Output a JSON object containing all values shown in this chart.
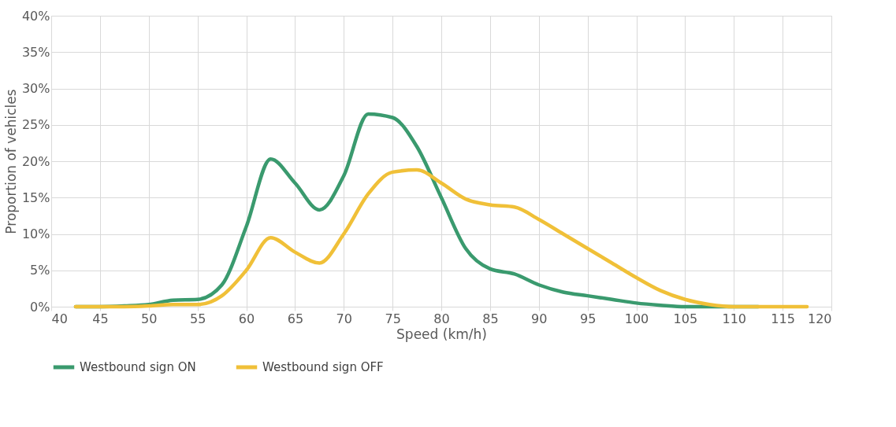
{
  "chart_data": {
    "type": "line",
    "xlabel": "Speed (km/h)",
    "ylabel": "Proportion of vehicles",
    "x": [
      42.5,
      45,
      47.5,
      50,
      52.5,
      55,
      57.5,
      60,
      62.5,
      65,
      67.5,
      70,
      72.5,
      75,
      77.5,
      80,
      82.5,
      85,
      87.5,
      90,
      92.5,
      95,
      97.5,
      100,
      102.5,
      105,
      107.5,
      110,
      112.5,
      115,
      117.5
    ],
    "series": [
      {
        "name": "Westbound sign ON",
        "color": "#3a9a6e",
        "values": [
          0,
          0,
          0.1,
          0.3,
          0.9,
          1,
          3,
          11,
          20.3,
          17,
          13.3,
          18,
          26.5,
          26,
          22,
          15,
          8,
          5.2,
          4.5,
          3,
          2,
          1.5,
          1,
          0.5,
          0.2,
          0,
          0,
          0,
          0,
          null,
          null
        ]
      },
      {
        "name": "Westbound sign OFF",
        "color": "#f0c038",
        "values": [
          0,
          0,
          0,
          0.1,
          0.3,
          0.3,
          1.5,
          5,
          9.5,
          7.5,
          6,
          10,
          15.5,
          18.5,
          18.8,
          17,
          14.8,
          14,
          13.7,
          12,
          10,
          8,
          6,
          4,
          2.2,
          1,
          0.3,
          0,
          0,
          0,
          0
        ]
      }
    ],
    "xlim": [
      40,
      120
    ],
    "xticks": [
      40,
      45,
      50,
      55,
      60,
      65,
      70,
      75,
      80,
      85,
      90,
      95,
      100,
      105,
      110,
      115,
      120
    ],
    "ylim": [
      0,
      40
    ],
    "yticks": [
      {
        "value": 0,
        "label": "0%"
      },
      {
        "value": 5,
        "label": "5%"
      },
      {
        "value": 10,
        "label": "10%"
      },
      {
        "value": 15,
        "label": "15%"
      },
      {
        "value": 20,
        "label": "20%"
      },
      {
        "value": 25,
        "label": "25%"
      },
      {
        "value": 30,
        "label": "30%"
      },
      {
        "value": 35,
        "label": "35%"
      },
      {
        "value": 40,
        "label": "40%"
      }
    ],
    "grid": true,
    "legend": "bottom",
    "marker": "none",
    "line_style": "solid"
  }
}
